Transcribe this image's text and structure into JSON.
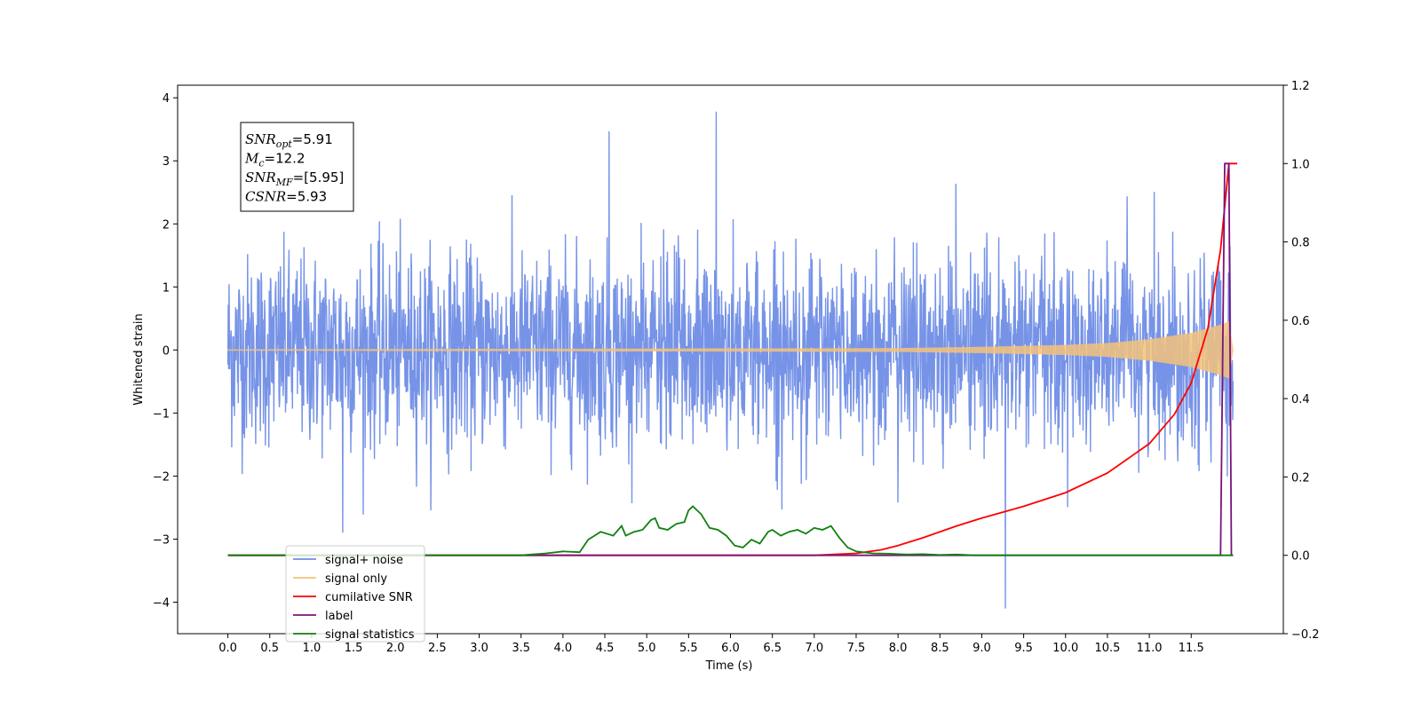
{
  "chart_data": {
    "type": "line",
    "xlabel": "Time (s)",
    "ylabel": "Whitened strain",
    "xlim": [
      -0.6,
      12.6
    ],
    "ylim": [
      -4.5,
      4.2
    ],
    "y2lim": [
      -0.2,
      1.2
    ],
    "x_ticks": [
      "0.0",
      "0.5",
      "1.0",
      "1.5",
      "2.0",
      "2.5",
      "3.0",
      "3.5",
      "4.0",
      "4.5",
      "5.0",
      "5.5",
      "6.0",
      "6.5",
      "7.0",
      "7.5",
      "8.0",
      "8.5",
      "9.0",
      "9.5",
      "10.0",
      "10.5",
      "11.0",
      "11.5"
    ],
    "y_ticks": [
      "4",
      "3",
      "2",
      "1",
      "0",
      "−1",
      "−2",
      "−3",
      "−4"
    ],
    "y2_ticks": [
      "1.2",
      "1.0",
      "0.8",
      "0.6",
      "0.4",
      "0.2",
      "0.0",
      "−0.2"
    ],
    "grid": false,
    "legend": {
      "placement": "lower-left",
      "entries": [
        "signal+ noise",
        "signal only",
        "cumilative SNR",
        "label",
        "signal statistics"
      ]
    },
    "annotation": {
      "lines": [
        {
          "var": "SNR",
          "sub": "opt",
          "value": "=5.91"
        },
        {
          "var": "M",
          "sub": "c",
          "value": "=12.2"
        },
        {
          "var": "SNR",
          "sub": "MF",
          "value": "=[5.95]"
        },
        {
          "var": "CSNR",
          "sub": "",
          "value": "=5.93"
        }
      ]
    },
    "series": [
      {
        "name": "signal+ noise",
        "axis": "left",
        "color": "#6f8de6",
        "x_range": [
          0.0,
          12.0
        ],
        "envelope_upper": 2.1,
        "envelope_lower": -2.1,
        "spikes": [
          [
            4.55,
            3.47
          ],
          [
            5.83,
            3.78
          ],
          [
            9.28,
            -4.1
          ],
          [
            1.37,
            -2.9
          ]
        ]
      },
      {
        "name": "signal only",
        "axis": "left",
        "color": "#f4c27a",
        "x_range": [
          0.0,
          12.0
        ],
        "envelope": [
          [
            0.0,
            0.01
          ],
          [
            8.0,
            0.03
          ],
          [
            9.0,
            0.05
          ],
          [
            10.0,
            0.08
          ],
          [
            10.5,
            0.11
          ],
          [
            11.0,
            0.17
          ],
          [
            11.5,
            0.27
          ],
          [
            11.8,
            0.38
          ],
          [
            11.95,
            0.45
          ],
          [
            12.0,
            0.0
          ]
        ]
      },
      {
        "name": "cumilative SNR",
        "axis": "right",
        "color": "#ff0000",
        "x": [
          0.0,
          7.0,
          7.5,
          7.8,
          8.0,
          8.3,
          8.7,
          9.0,
          9.5,
          10.0,
          10.5,
          11.0,
          11.3,
          11.5,
          11.7,
          11.85,
          11.95,
          12.05
        ],
        "y": [
          0.0,
          0.0,
          0.005,
          0.014,
          0.025,
          0.045,
          0.075,
          0.095,
          0.125,
          0.16,
          0.21,
          0.285,
          0.36,
          0.44,
          0.58,
          0.78,
          1.0,
          1.0
        ]
      },
      {
        "name": "label",
        "axis": "right",
        "color": "#7a137a",
        "x": [
          0.0,
          11.85,
          11.9,
          11.92,
          11.95,
          11.98,
          12.0
        ],
        "y": [
          0.0,
          0.0,
          1.0,
          1.0,
          1.0,
          0.0,
          0.0
        ]
      },
      {
        "name": "signal statistics",
        "axis": "right",
        "color": "#0f800f",
        "x": [
          0.0,
          3.0,
          3.5,
          3.8,
          4.0,
          4.2,
          4.3,
          4.45,
          4.6,
          4.7,
          4.75,
          4.85,
          4.95,
          5.05,
          5.1,
          5.15,
          5.25,
          5.35,
          5.45,
          5.5,
          5.55,
          5.65,
          5.75,
          5.85,
          5.95,
          6.05,
          6.15,
          6.25,
          6.35,
          6.45,
          6.5,
          6.6,
          6.7,
          6.8,
          6.9,
          7.0,
          7.1,
          7.2,
          7.3,
          7.4,
          7.5,
          7.7,
          7.9,
          8.1,
          8.3,
          8.5,
          8.7,
          8.9,
          9.2,
          10.0,
          12.0
        ],
        "y": [
          0.0,
          0.0,
          0.0,
          0.005,
          0.01,
          0.008,
          0.04,
          0.06,
          0.05,
          0.075,
          0.05,
          0.06,
          0.065,
          0.09,
          0.095,
          0.07,
          0.065,
          0.08,
          0.085,
          0.115,
          0.125,
          0.105,
          0.07,
          0.065,
          0.05,
          0.025,
          0.02,
          0.04,
          0.03,
          0.06,
          0.065,
          0.05,
          0.06,
          0.065,
          0.055,
          0.07,
          0.065,
          0.075,
          0.045,
          0.02,
          0.01,
          0.005,
          0.004,
          0.002,
          0.003,
          0.001,
          0.002,
          0.0,
          0.0,
          0.0,
          0.0
        ]
      }
    ]
  }
}
